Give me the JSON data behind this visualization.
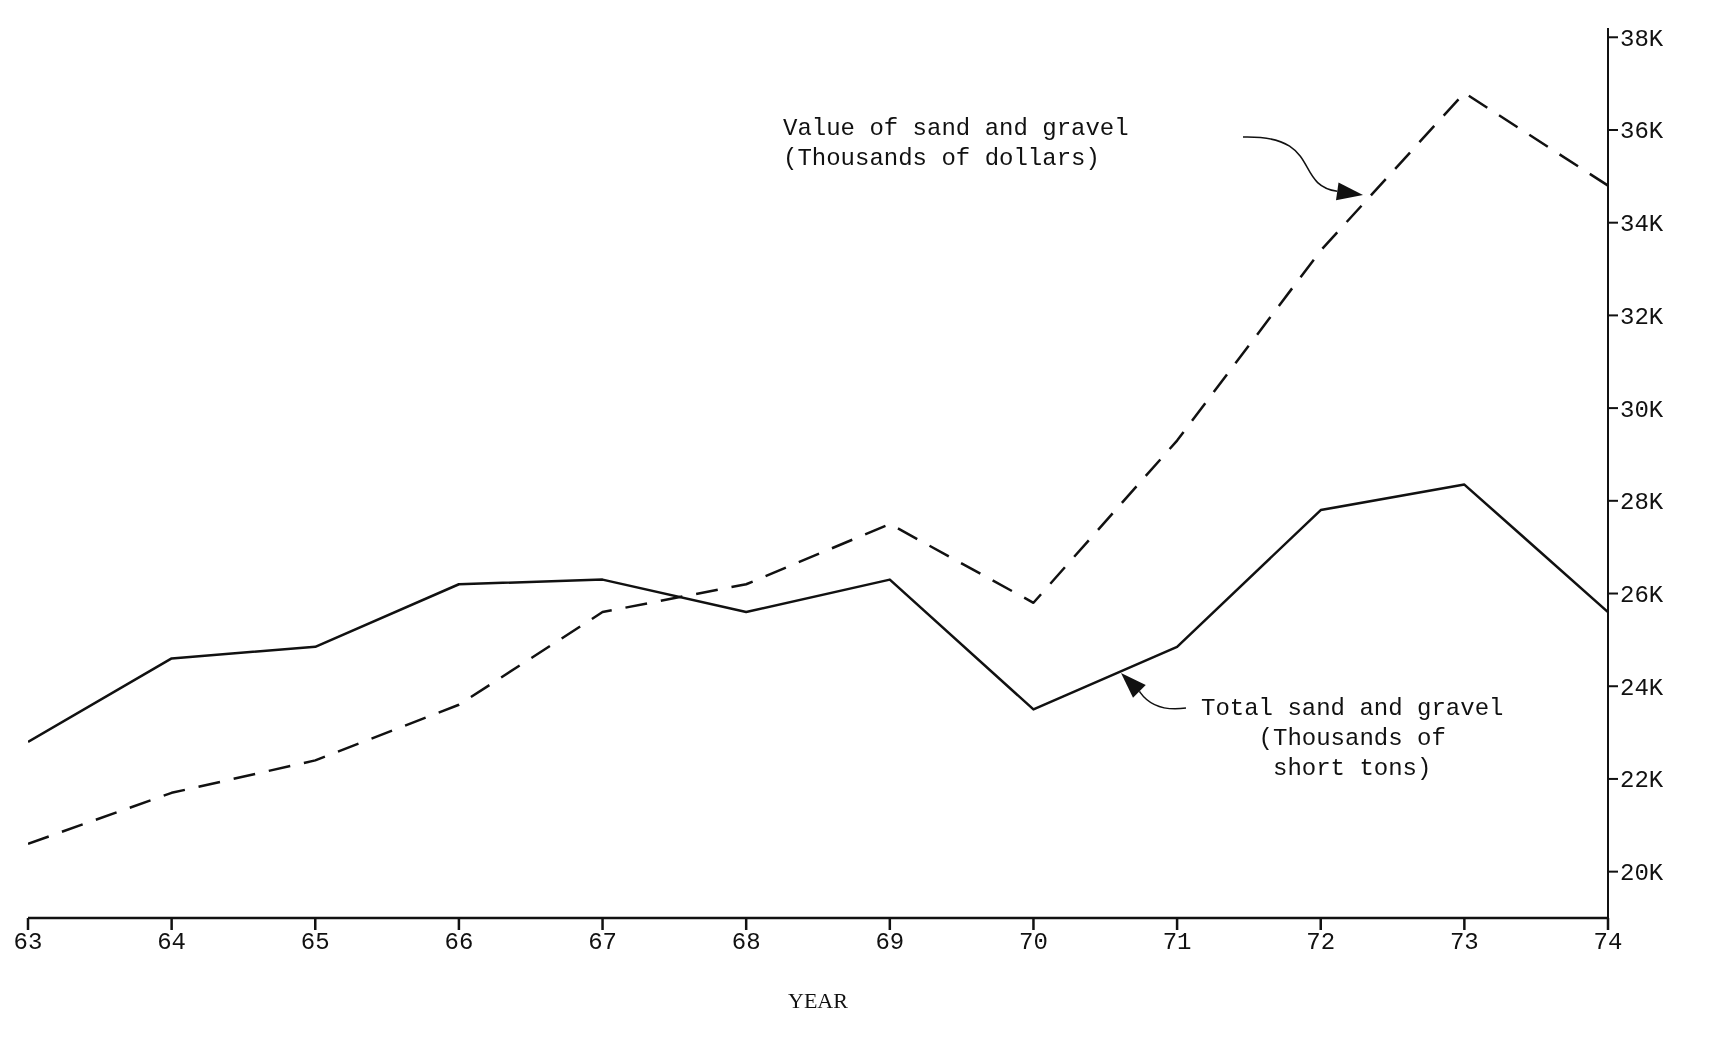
{
  "chart_data": {
    "type": "line",
    "xlabel": "YEAR",
    "x": [
      63,
      64,
      65,
      66,
      67,
      68,
      69,
      70,
      71,
      72,
      73,
      74
    ],
    "series": [
      {
        "color": "#111111",
        "line_style": "solid",
        "values": [
          22800,
          24600,
          24850,
          26200,
          26300,
          25600,
          26300,
          23500,
          24850,
          27800,
          28350,
          25600
        ]
      },
      {
        "color": "#111111",
        "line_style": "dashed",
        "values": [
          20600,
          21700,
          22400,
          23600,
          25600,
          26200,
          27500,
          25800,
          29300,
          33400,
          36800,
          34800
        ]
      }
    ],
    "xlim": [
      63,
      74
    ],
    "xticks": [
      63,
      64,
      65,
      66,
      67,
      68,
      69,
      70,
      71,
      72,
      73,
      74
    ],
    "ylim": [
      19000,
      38200
    ],
    "yticks": [
      {
        "value": 20000,
        "label": "20K"
      },
      {
        "value": 22000,
        "label": "22K"
      },
      {
        "value": 24000,
        "label": "24K"
      },
      {
        "value": 26000,
        "label": "26K"
      },
      {
        "value": 28000,
        "label": "28K"
      },
      {
        "value": 30000,
        "label": "30K"
      },
      {
        "value": 32000,
        "label": "32K"
      },
      {
        "value": 34000,
        "label": "34K"
      },
      {
        "value": 36000,
        "label": "36K"
      },
      {
        "value": 38000,
        "label": "38K"
      }
    ],
    "annotations": [
      "Value of sand and gravel\n(Thousands of dollars)",
      "Total sand and gravel\n(Thousands of\nshort tons)"
    ],
    "grid": false,
    "legend": false,
    "marker": "none"
  }
}
